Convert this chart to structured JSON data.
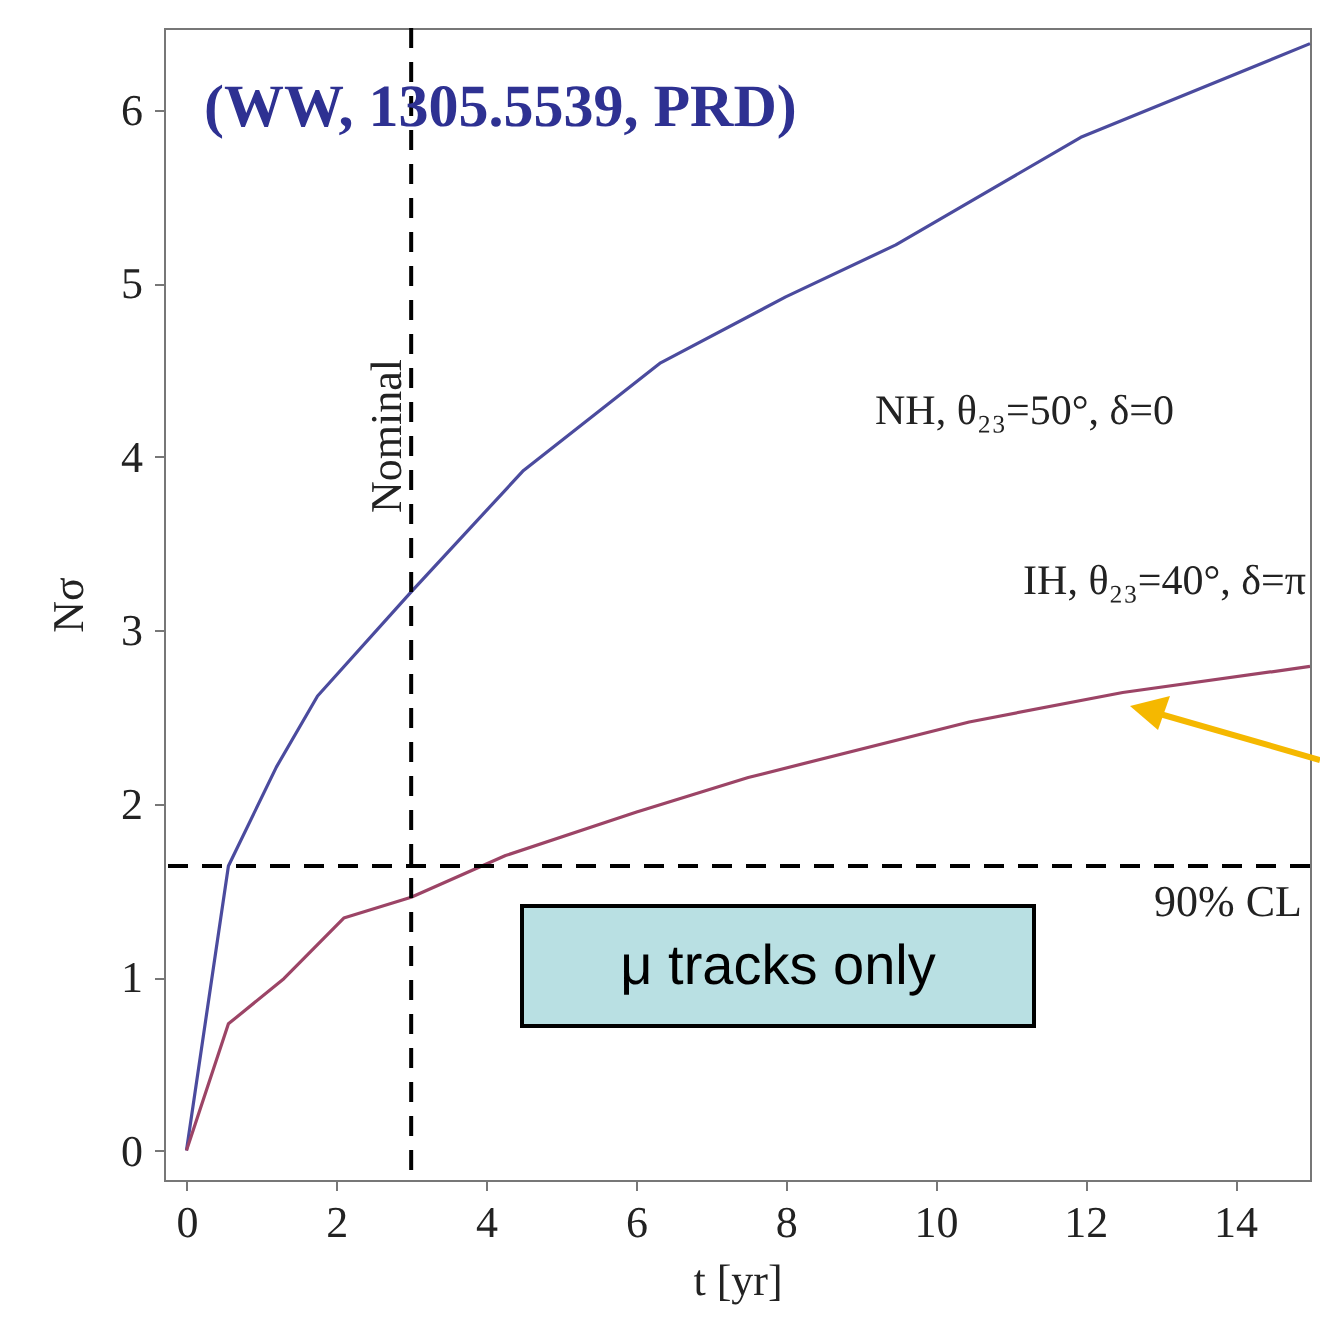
{
  "chart_data": {
    "type": "line",
    "title": "(WW, 1305.5539, PRD)",
    "xlabel": "t [yr]",
    "ylabel": "Nσ",
    "xlim": [
      -0.3,
      15
    ],
    "ylim": [
      -0.17,
      6.47
    ],
    "xticks": [
      0,
      2,
      4,
      6,
      8,
      10,
      12,
      14
    ],
    "yticks": [
      0,
      1,
      2,
      3,
      4,
      5,
      6
    ],
    "grid": false,
    "marker": "none",
    "line_style": "solid",
    "series": [
      {
        "name": "NH, θ₂₃=50°, δ=0",
        "color": "#4b4b9e",
        "x": [
          0,
          0.56,
          1.2,
          1.75,
          3,
          4.5,
          6.33,
          8,
          9.47,
          11.94,
          15
        ],
        "values": [
          0,
          1.64,
          2.21,
          2.62,
          3.22,
          3.92,
          4.54,
          4.92,
          5.22,
          5.84,
          6.38
        ]
      },
      {
        "name": "IH, θ₂₃=40°, δ=π",
        "color": "#9c4466",
        "x": [
          0,
          0.56,
          1.3,
          2.1,
          3,
          4.26,
          6,
          7.5,
          10.45,
          12.5,
          15
        ],
        "values": [
          0,
          0.73,
          0.99,
          1.34,
          1.46,
          1.7,
          1.95,
          2.15,
          2.47,
          2.64,
          2.79
        ]
      }
    ],
    "ref_lines": [
      {
        "axis": "x",
        "value": 3,
        "label": "Nominal",
        "line_style": "dashed"
      },
      {
        "axis": "y",
        "value": 1.64,
        "label": "90% CL",
        "line_style": "dashed"
      }
    ],
    "annotations": [
      "μ tracks only"
    ]
  }
}
